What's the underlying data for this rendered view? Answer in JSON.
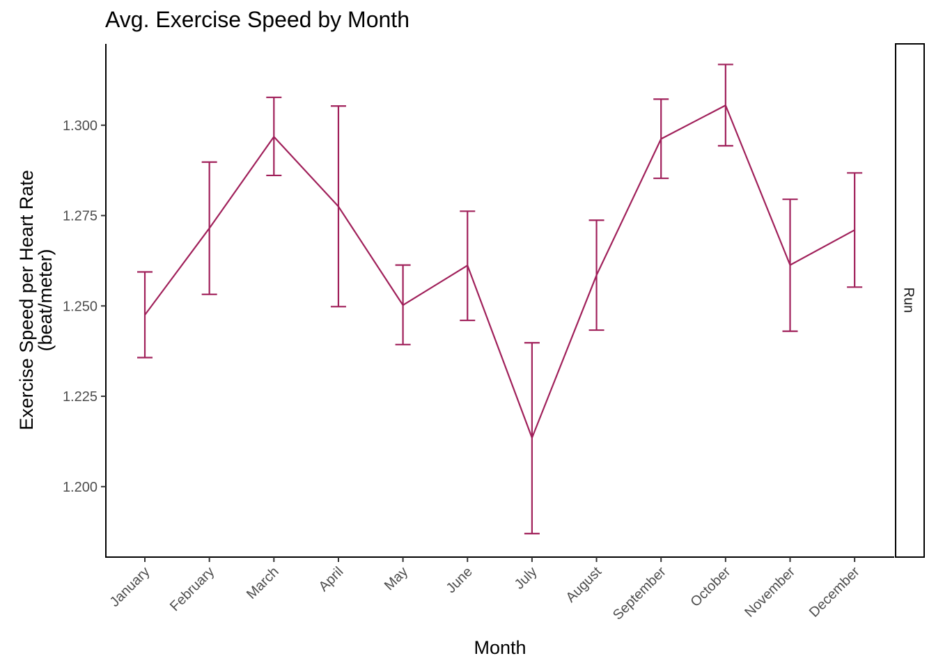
{
  "chart_data": {
    "type": "line",
    "title": "Avg. Exercise Speed by Month",
    "xlabel": "Month",
    "ylabel": [
      "Exercise Speed per Heart Rate",
      "(beat/meter)"
    ],
    "facet_label": "Run",
    "categories": [
      "January",
      "February",
      "March",
      "April",
      "May",
      "June",
      "July",
      "August",
      "September",
      "October",
      "November",
      "December"
    ],
    "series": [
      {
        "values": [
          1.2475,
          1.2715,
          1.2968,
          1.2775,
          1.2502,
          1.2612,
          1.2135,
          1.2585,
          1.2962,
          1.3055,
          1.2613,
          1.271
        ],
        "error_low": [
          1.2357,
          1.2532,
          1.2861,
          1.2498,
          1.2393,
          1.246,
          1.187,
          1.2433,
          1.2853,
          1.2943,
          1.243,
          1.2552
        ],
        "error_high": [
          1.2594,
          1.2898,
          1.3077,
          1.3053,
          1.2613,
          1.2762,
          1.2398,
          1.2737,
          1.3072,
          1.3168,
          1.2795,
          1.2868
        ],
        "color": "#a0205a"
      }
    ],
    "yticks": [
      1.2,
      1.225,
      1.25,
      1.275,
      1.3
    ],
    "ytick_labels": [
      "1.200",
      "1.225",
      "1.250",
      "1.275",
      "1.300"
    ],
    "ylim": [
      1.1805,
      1.3225
    ],
    "grid": false,
    "legend": "none"
  }
}
